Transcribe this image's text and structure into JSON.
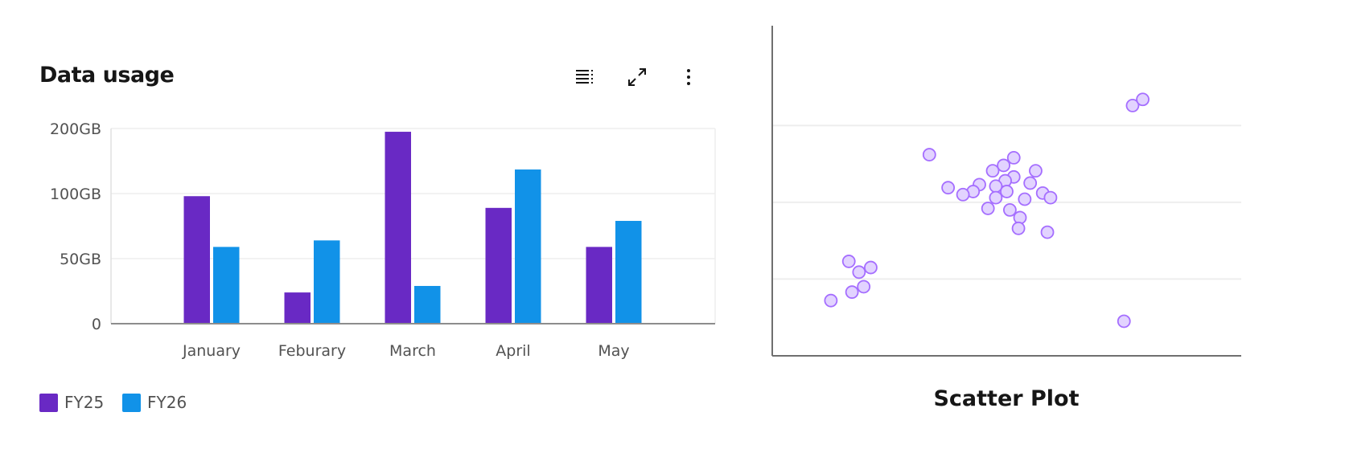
{
  "chart_data": [
    {
      "type": "bar",
      "title": "Data usage",
      "categories": [
        "January",
        "Feburary",
        "March",
        "April",
        "May"
      ],
      "series": [
        {
          "name": "FY25",
          "color": "#6929c4",
          "values": [
            98,
            24,
            195,
            89,
            59
          ]
        },
        {
          "name": "FY26",
          "color": "#1192e8",
          "values": [
            59,
            64,
            29,
            137,
            79
          ]
        }
      ],
      "yticks": [
        0,
        50,
        100,
        200
      ],
      "ytick_labels": [
        "0",
        "50GB",
        "100GB",
        "200GB"
      ],
      "ylim": [
        0,
        200
      ],
      "xlabel": "",
      "ylabel": "",
      "grid": true,
      "legend": "bottom-left",
      "toolbar_icons": [
        "table-view-icon",
        "maximize-icon",
        "overflow-menu-icon"
      ]
    },
    {
      "type": "scatter",
      "title": "Scatter Plot",
      "color_fill": "#e2d3ff",
      "color_stroke": "#a56eff",
      "grid": true,
      "ylim": [
        0,
        4.3
      ],
      "xlim": [
        0,
        6
      ],
      "points": [
        [
          4.61,
          3.26
        ],
        [
          4.74,
          3.34
        ],
        [
          2.01,
          2.62
        ],
        [
          3.09,
          2.58
        ],
        [
          2.96,
          2.48
        ],
        [
          2.82,
          2.41
        ],
        [
          3.37,
          2.41
        ],
        [
          3.09,
          2.33
        ],
        [
          2.98,
          2.28
        ],
        [
          2.25,
          2.19
        ],
        [
          2.65,
          2.23
        ],
        [
          2.57,
          2.14
        ],
        [
          2.44,
          2.1
        ],
        [
          2.86,
          2.21
        ],
        [
          3.0,
          2.14
        ],
        [
          3.3,
          2.25
        ],
        [
          3.46,
          2.12
        ],
        [
          3.56,
          2.06
        ],
        [
          2.86,
          2.06
        ],
        [
          3.23,
          2.04
        ],
        [
          2.76,
          1.92
        ],
        [
          3.04,
          1.9
        ],
        [
          3.17,
          1.8
        ],
        [
          3.15,
          1.66
        ],
        [
          3.52,
          1.61
        ],
        [
          0.98,
          1.23
        ],
        [
          1.26,
          1.15
        ],
        [
          1.11,
          1.09
        ],
        [
          1.17,
          0.9
        ],
        [
          1.02,
          0.83
        ],
        [
          0.75,
          0.72
        ],
        [
          4.5,
          0.45
        ]
      ]
    }
  ]
}
